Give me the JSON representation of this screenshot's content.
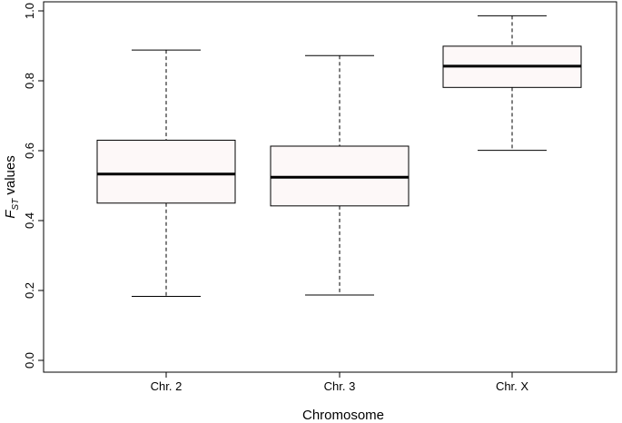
{
  "chart_data": {
    "type": "boxplot",
    "title": "",
    "xlabel": "Chromosome",
    "ylabel": {
      "main": "F",
      "subscript": "ST",
      "suffix": " values"
    },
    "ylim": [
      0.0,
      1.0
    ],
    "yticks": [
      "0.0",
      "0.2",
      "0.4",
      "0.6",
      "0.8",
      "1.0"
    ],
    "ytick_values": [
      0.0,
      0.2,
      0.4,
      0.6,
      0.8,
      1.0
    ],
    "grid": false,
    "categories": [
      "Chr. 2",
      "Chr. 3",
      "Chr. X"
    ],
    "boxes": [
      {
        "category": "Chr. 2",
        "min": 0.183,
        "q1": 0.45,
        "median": 0.533,
        "q3": 0.63,
        "max": 0.888
      },
      {
        "category": "Chr. 3",
        "min": 0.187,
        "q1": 0.442,
        "median": 0.524,
        "q3": 0.613,
        "max": 0.872
      },
      {
        "category": "Chr. X",
        "min": 0.601,
        "q1": 0.781,
        "median": 0.842,
        "q3": 0.899,
        "max": 0.986
      }
    ],
    "colors": {
      "box_fill": "#fdf8f8",
      "box_stroke": "#000000",
      "median": "#000000",
      "whisker": "#000000"
    }
  }
}
